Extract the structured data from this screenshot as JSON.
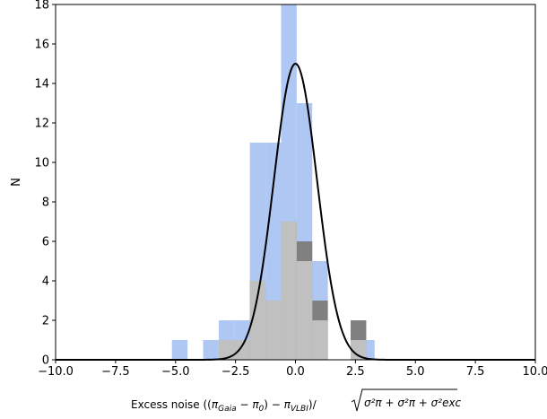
{
  "chart_data": {
    "type": "bar",
    "xlabel_parts": {
      "prefix": "Excess noise ((",
      "pi": "π",
      "gaia_sub": "Gaia",
      "minus1": " − ",
      "pi0": "π",
      "zero_sub": "0",
      "close1": ") − ",
      "pivlbi": "π",
      "vlbi_sub": "VLBI",
      "close2": ")/",
      "sqrt_content": "σ²π + σ²π + σ²exc"
    },
    "ylabel": "N",
    "xlim": [
      -10,
      10
    ],
    "ylim": [
      0,
      18
    ],
    "x_ticks": [
      -10.0,
      -7.5,
      -5.0,
      -2.5,
      0.0,
      2.5,
      5.0,
      7.5,
      10.0
    ],
    "x_tick_labels": [
      "−10.0",
      "−7.5",
      "−5.0",
      "−2.5",
      "0.0",
      "2.5",
      "5.0",
      "7.5",
      "10.0"
    ],
    "y_ticks": [
      0,
      2,
      4,
      6,
      8,
      10,
      12,
      14,
      16,
      18
    ],
    "y_tick_labels": [
      "0",
      "2",
      "4",
      "6",
      "8",
      "10",
      "12",
      "14",
      "16",
      "18"
    ],
    "bin_width": 0.65,
    "series": [
      {
        "color": "#aec7f3",
        "bins": [
          {
            "x0": -5.15,
            "count": 1
          },
          {
            "x0": -3.85,
            "count": 1
          },
          {
            "x0": -3.2,
            "count": 2
          },
          {
            "x0": -2.55,
            "count": 2
          },
          {
            "x0": -1.9,
            "count": 11
          },
          {
            "x0": -1.25,
            "count": 11
          },
          {
            "x0": -0.6,
            "count": 18
          },
          {
            "x0": 0.05,
            "count": 13
          },
          {
            "x0": 0.7,
            "count": 5
          },
          {
            "x0": 1.35,
            "count": 0
          },
          {
            "x0": 2.0,
            "count": 0
          },
          {
            "x0": 2.65,
            "count": 1
          }
        ]
      },
      {
        "color": "#808080",
        "bins": [
          {
            "x0": -2.55,
            "count": 1
          },
          {
            "x0": -1.9,
            "count": 4
          },
          {
            "x0": -1.25,
            "count": 3
          },
          {
            "x0": -0.6,
            "count": 7
          },
          {
            "x0": 0.05,
            "count": 6
          },
          {
            "x0": 0.7,
            "count": 3
          },
          {
            "x0": 2.3,
            "count": 2
          }
        ]
      },
      {
        "color": "#c0c0c0",
        "bins": [
          {
            "x0": -3.2,
            "count": 1
          },
          {
            "x0": -2.55,
            "count": 1
          },
          {
            "x0": -1.9,
            "count": 4
          },
          {
            "x0": -1.25,
            "count": 3
          },
          {
            "x0": -0.6,
            "count": 7
          },
          {
            "x0": 0.05,
            "count": 5
          },
          {
            "x0": 0.7,
            "count": 2
          },
          {
            "x0": 2.3,
            "count": 1
          }
        ]
      }
    ],
    "curve": {
      "type": "gaussian",
      "mean": 0.0,
      "sigma": 0.9,
      "peak": 15.0,
      "color": "#000000"
    }
  }
}
